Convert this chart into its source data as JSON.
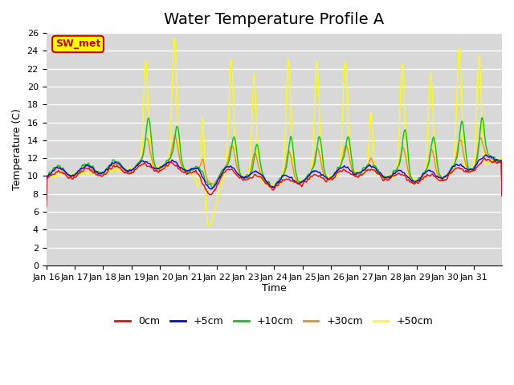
{
  "title": "Water Temperature Profile A",
  "xlabel": "Time",
  "ylabel": "Temperature (C)",
  "ylim": [
    0,
    26
  ],
  "yticks": [
    0,
    2,
    4,
    6,
    8,
    10,
    12,
    14,
    16,
    18,
    20,
    22,
    24,
    26
  ],
  "xtick_labels": [
    "Jan 16",
    "Jan 17",
    "Jan 18",
    "Jan 19",
    "Jan 20",
    "Jan 21",
    "Jan 22",
    "Jan 23",
    "Jan 24",
    "Jan 25",
    "Jan 26",
    "Jan 27",
    "Jan 28",
    "Jan 29",
    "Jan 30",
    "Jan 31"
  ],
  "legend_labels": [
    "0cm",
    "+5cm",
    "+10cm",
    "+30cm",
    "+50cm"
  ],
  "legend_colors": [
    "#ff0000",
    "#0000ff",
    "#00cc00",
    "#ff8800",
    "#ffff00"
  ],
  "line_colors": [
    "#ff0000",
    "#0000ff",
    "#00cc00",
    "#ff8800",
    "#ffff00"
  ],
  "annotation_text": "SW_met",
  "annotation_bg": "#ffff00",
  "annotation_border": "#cc0000",
  "plot_bg": "#d8d8d8",
  "title_fontsize": 14,
  "axis_fontsize": 9,
  "tick_fontsize": 8
}
